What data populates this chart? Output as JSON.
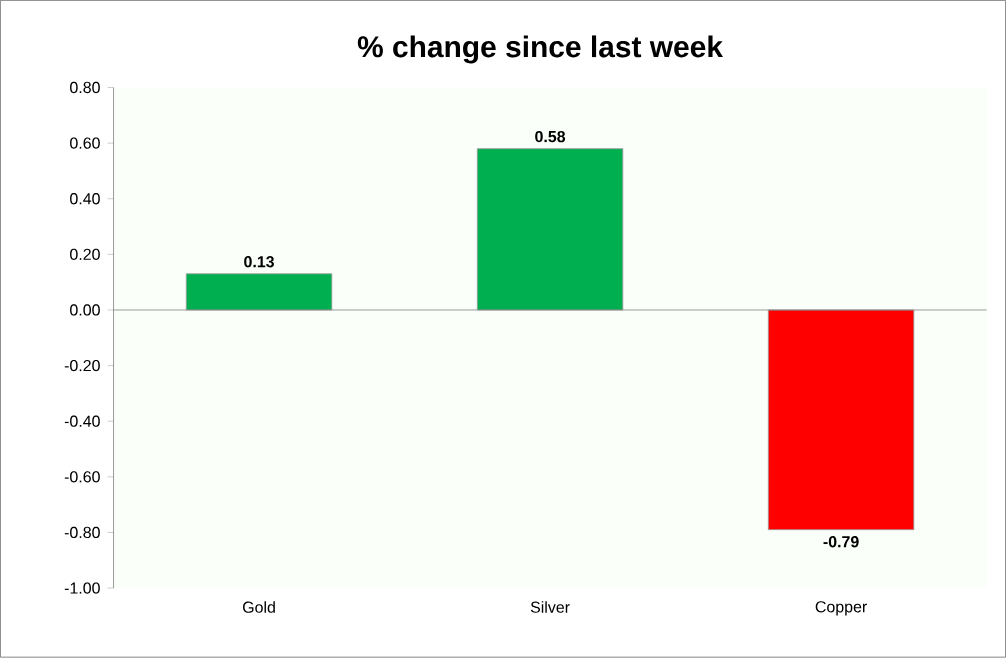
{
  "chart_data": {
    "type": "bar",
    "title": "% change since last week",
    "categories": [
      "Gold",
      "Silver",
      "Copper"
    ],
    "values": [
      0.13,
      0.58,
      -0.79
    ],
    "colors": [
      "#00b050",
      "#00b050",
      "#ff0000"
    ],
    "ylim": [
      -1.0,
      0.8
    ],
    "yticks": [
      {
        "value": -1.0,
        "label": "-1.00"
      },
      {
        "value": -0.8,
        "label": "-0.80"
      },
      {
        "value": -0.6,
        "label": "-0.60"
      },
      {
        "value": -0.4,
        "label": "-0.40"
      },
      {
        "value": -0.2,
        "label": "-0.20"
      },
      {
        "value": 0,
        "label": "0.00"
      },
      {
        "value": 0.2,
        "label": "0.20"
      },
      {
        "value": 0.4,
        "label": "0.40"
      },
      {
        "value": 0.6,
        "label": "0.60"
      },
      {
        "value": 0.8,
        "label": "0.80"
      }
    ],
    "value_labels": [
      "0.13",
      "0.58",
      "-0.79"
    ]
  }
}
